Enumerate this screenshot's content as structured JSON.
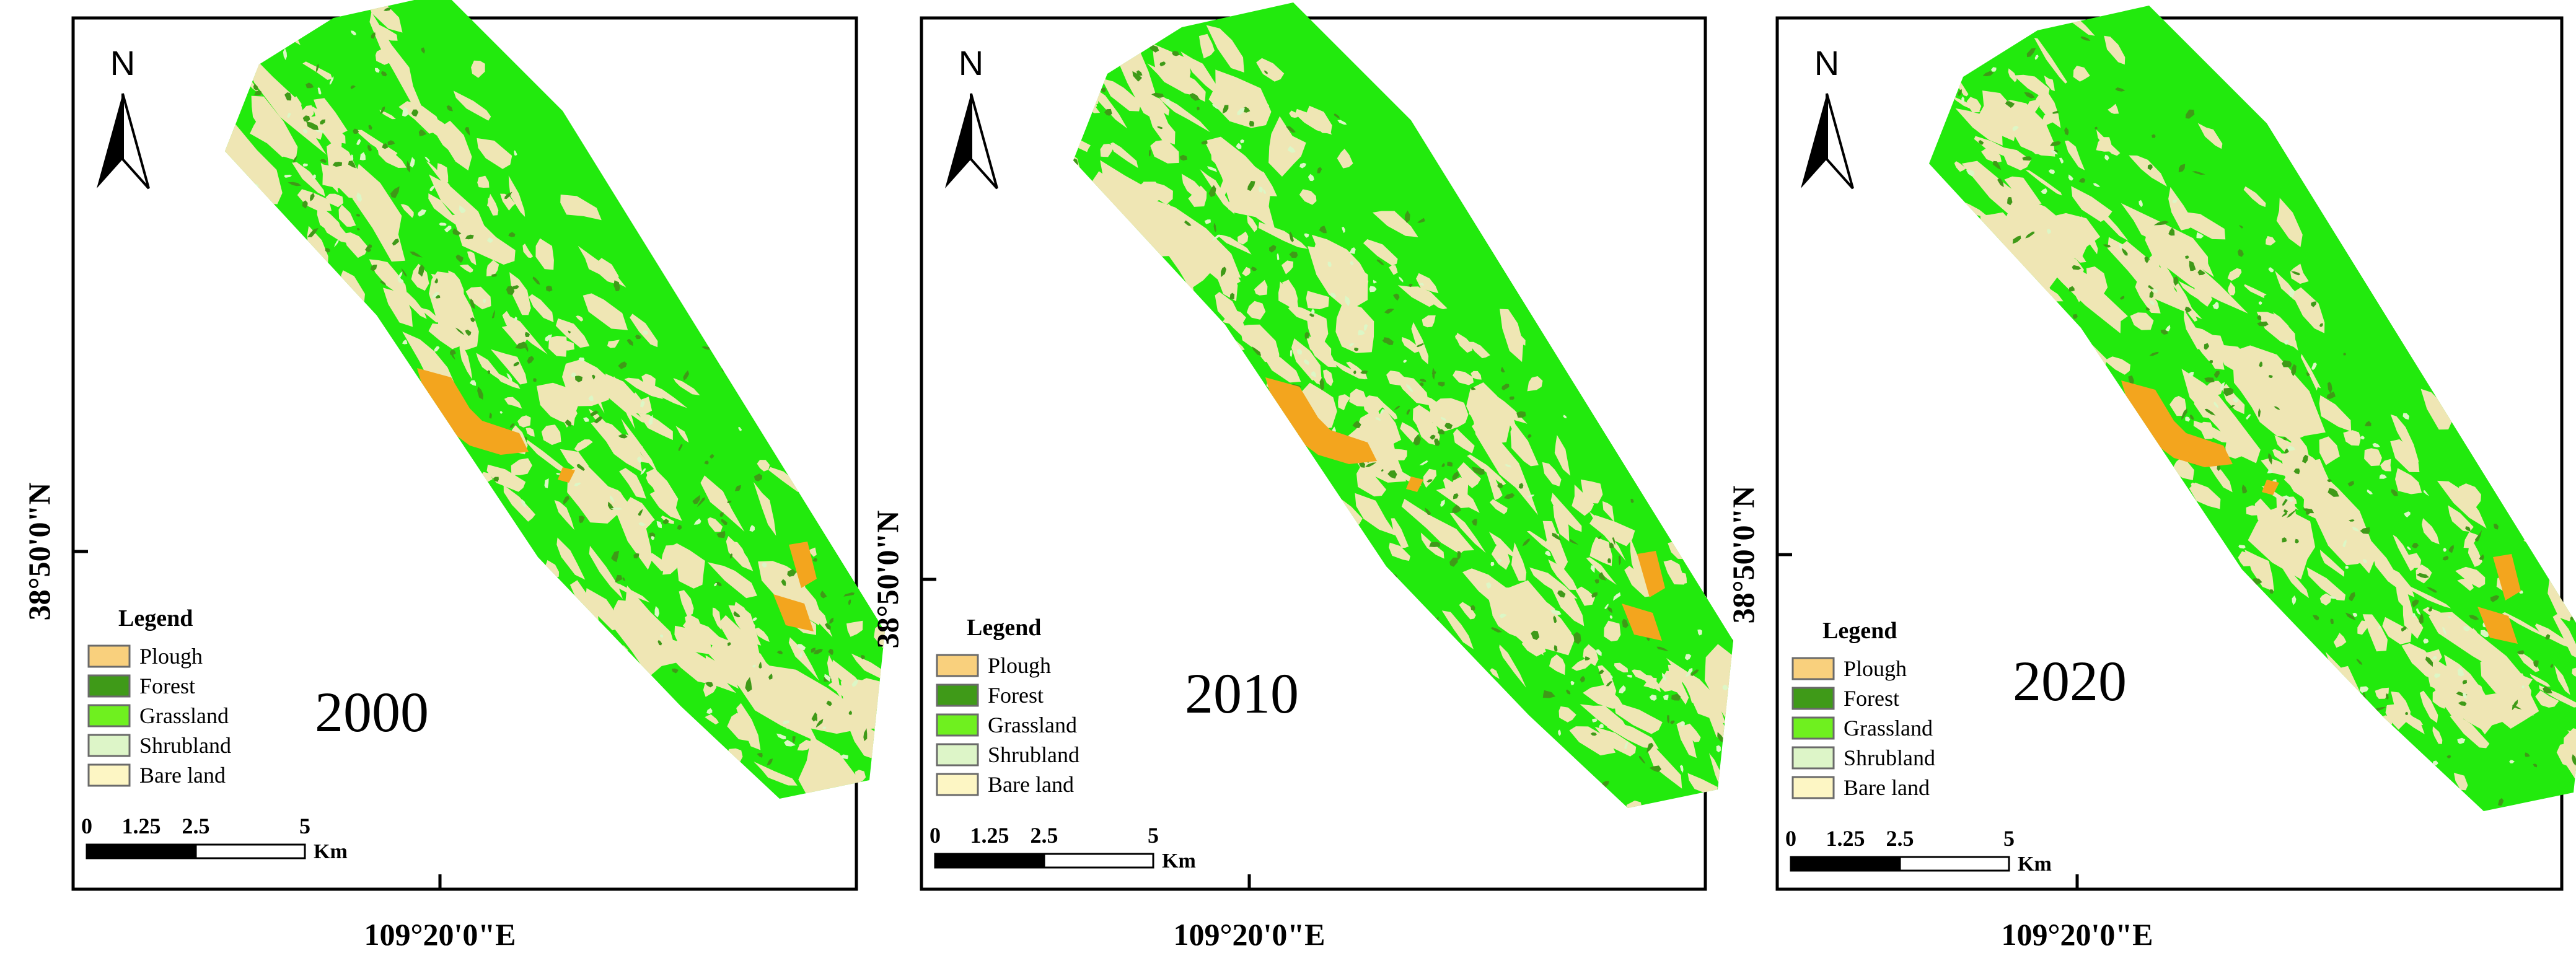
{
  "figure": {
    "colors": {
      "plough": "#f3a51e",
      "forest": "#3f9a18",
      "grassland": "#22ea0d",
      "shrubland": "#dcf7c6",
      "bare_land": "#efe6b4",
      "frame": "#000000",
      "background": "#ffffff"
    },
    "panels": [
      {
        "year": "2000",
        "north_label": "N",
        "lat_label": "38°50'0\"N",
        "lon_label": "109°20'0\"E",
        "legend": {
          "title": "Legend",
          "items": [
            {
              "label": "Plough",
              "key": "plough",
              "swatch": "#f9d07d"
            },
            {
              "label": "Forest",
              "key": "forest",
              "swatch": "#3f9a18"
            },
            {
              "label": "Grassland",
              "key": "grassland",
              "swatch": "#6ff01f"
            },
            {
              "label": "Shrubland",
              "key": "shrubland",
              "swatch": "#ddf5c8"
            },
            {
              "label": "Bare land",
              "key": "bare_land",
              "swatch": "#fdf6c4"
            }
          ]
        },
        "scale": {
          "ticks": [
            "0",
            "1.25",
            "2.5",
            "5"
          ],
          "unit": "Km"
        }
      },
      {
        "year": "2010",
        "north_label": "N",
        "lat_label": "38°50'0\"N",
        "lon_label": "109°20'0\"E",
        "legend": {
          "title": "Legend",
          "items": [
            {
              "label": "Plough",
              "key": "plough",
              "swatch": "#f9d07d"
            },
            {
              "label": "Forest",
              "key": "forest",
              "swatch": "#3f9a18"
            },
            {
              "label": "Grassland",
              "key": "grassland",
              "swatch": "#6ff01f"
            },
            {
              "label": "Shrubland",
              "key": "shrubland",
              "swatch": "#ddf5c8"
            },
            {
              "label": "Bare land",
              "key": "bare_land",
              "swatch": "#fdf6c4"
            }
          ]
        },
        "scale": {
          "ticks": [
            "0",
            "1.25",
            "2.5",
            "5"
          ],
          "unit": "Km"
        }
      },
      {
        "year": "2020",
        "north_label": "N",
        "lat_label": "38°50'0\"N",
        "lon_label": "109°20'0\"E",
        "legend": {
          "title": "Legend",
          "items": [
            {
              "label": "Plough",
              "key": "plough",
              "swatch": "#f9d07d"
            },
            {
              "label": "Forest",
              "key": "forest",
              "swatch": "#3f9a18"
            },
            {
              "label": "Grassland",
              "key": "grassland",
              "swatch": "#6ff01f"
            },
            {
              "label": "Shrubland",
              "key": "shrubland",
              "swatch": "#ddf5c8"
            },
            {
              "label": "Bare land",
              "key": "bare_land",
              "swatch": "#fdf6c4"
            }
          ]
        },
        "scale": {
          "ticks": [
            "0",
            "1.25",
            "2.5",
            "5"
          ],
          "unit": "Km"
        }
      }
    ]
  }
}
